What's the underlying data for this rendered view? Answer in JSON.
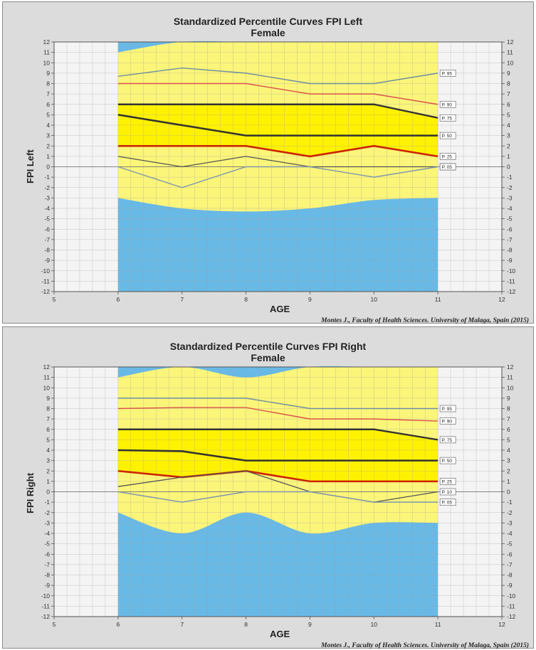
{
  "chart_data": [
    {
      "type": "line",
      "title": "Standardized Percentile Curves FPI Left",
      "subtitle": "Female",
      "xlabel": "AGE",
      "ylabel": "FPI  Left",
      "credit": "Montes J., Faculty of Health Sciences. University of Malaga, Spain (2015)",
      "xlim": [
        5,
        12
      ],
      "ylim": [
        -12,
        12
      ],
      "x_ticks": [
        5,
        6,
        7,
        8,
        9,
        10,
        11,
        12
      ],
      "y_ticks": [
        -12,
        -11,
        -10,
        -9,
        -8,
        -7,
        -6,
        -5,
        -4,
        -3,
        -2,
        -1,
        0,
        1,
        2,
        3,
        4,
        5,
        6,
        7,
        8,
        9,
        10,
        11,
        12
      ],
      "grid": true,
      "x": [
        6,
        7,
        8,
        9,
        10,
        11
      ],
      "series": [
        {
          "name": "P. 95",
          "values": [
            8.7,
            9.5,
            9,
            8,
            8,
            9
          ]
        },
        {
          "name": "P. 90",
          "values": [
            8,
            8,
            8,
            7,
            7,
            6
          ]
        },
        {
          "name": "P. 75",
          "values": [
            6,
            6,
            6,
            6,
            6,
            4.7
          ]
        },
        {
          "name": "P. 50",
          "values": [
            5,
            4,
            3,
            3,
            3,
            3
          ]
        },
        {
          "name": "P. 25",
          "values": [
            2,
            2,
            2,
            1,
            2,
            1
          ]
        },
        {
          "name": "P. 10",
          "values": [
            1,
            0,
            1,
            0,
            0,
            0
          ]
        },
        {
          "name": "P. 05",
          "values": [
            0,
            -2,
            0,
            0,
            -1,
            0
          ]
        }
      ],
      "bands": {
        "blue_top_lower_edge": [
          11,
          12,
          12,
          12,
          12,
          12
        ],
        "blue_bottom_upper_edge": [
          -3,
          -4,
          -4.3,
          -4,
          -3.2,
          -3
        ]
      },
      "colors": {
        "normal": "#fbf57a",
        "core": "#fff200",
        "extreme": "#69b9e6",
        "p95": "#6e8ea0",
        "p90": "#d9534f",
        "p75": "#333333",
        "p50": "#333333",
        "p25": "#cc2200",
        "p10": "#555555",
        "p05": "#7f97ae"
      }
    },
    {
      "type": "line",
      "title": "Standardized Percentile Curves FPI Right",
      "subtitle": "Female",
      "xlabel": "AGE",
      "ylabel": "FPI  Right",
      "credit": "Montes J., Faculty of Health Sciences. University of Malaga, Spain (2015)",
      "xlim": [
        5,
        12
      ],
      "ylim": [
        -12,
        12
      ],
      "x_ticks": [
        5,
        6,
        7,
        8,
        9,
        10,
        11,
        12
      ],
      "y_ticks": [
        -12,
        -11,
        -10,
        -9,
        -8,
        -7,
        -6,
        -5,
        -4,
        -3,
        -2,
        -1,
        0,
        1,
        2,
        3,
        4,
        5,
        6,
        7,
        8,
        9,
        10,
        11,
        12
      ],
      "grid": true,
      "x": [
        6,
        7,
        8,
        9,
        10,
        11
      ],
      "series": [
        {
          "name": "P. 95",
          "values": [
            9,
            9,
            9,
            8,
            8,
            8
          ]
        },
        {
          "name": "P. 90",
          "values": [
            8,
            8.1,
            8.1,
            7,
            7,
            6.8
          ]
        },
        {
          "name": "P. 75",
          "values": [
            6,
            6,
            6,
            6,
            6,
            5
          ]
        },
        {
          "name": "P. 50",
          "values": [
            4,
            3.9,
            3,
            3,
            3,
            3
          ]
        },
        {
          "name": "P. 25",
          "values": [
            2,
            1.4,
            2,
            1,
            1,
            1
          ]
        },
        {
          "name": "P. 10",
          "values": [
            0.5,
            1.4,
            2,
            0,
            -1,
            0
          ]
        },
        {
          "name": "P. 05",
          "values": [
            0,
            -1,
            0,
            0,
            -1,
            -1
          ]
        }
      ],
      "bands": {
        "blue_top_lower_edge": [
          11,
          12,
          11,
          12,
          12,
          12
        ],
        "blue_bottom_upper_edge": [
          -2,
          -4,
          -2,
          -4,
          -3,
          -3
        ]
      },
      "colors": {
        "normal": "#fbf57a",
        "core": "#fff200",
        "extreme": "#69b9e6",
        "p95": "#6e8ea0",
        "p90": "#d9534f",
        "p75": "#333333",
        "p50": "#333333",
        "p25": "#cc2200",
        "p10": "#555555",
        "p05": "#7f97ae"
      }
    }
  ]
}
